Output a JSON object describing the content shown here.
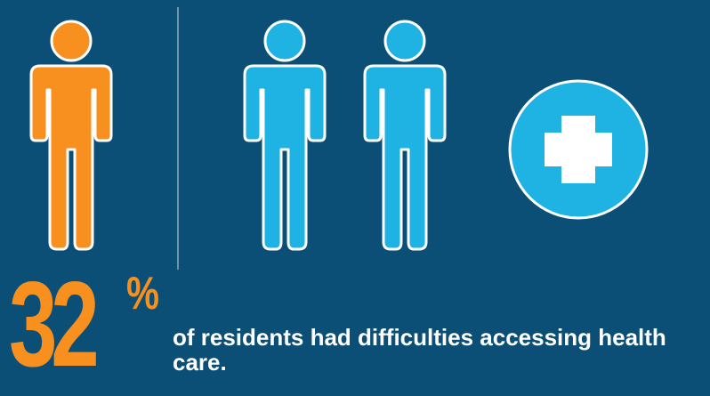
{
  "stat": {
    "value": "32",
    "unit": "%",
    "caption": "of residents had difficulties accessing health care."
  },
  "icons": [
    "person-icon",
    "person-icon",
    "person-icon",
    "medical-cross-icon"
  ],
  "colors": {
    "background": "#0b4f77",
    "highlight_person": "#f7901e",
    "other_people": "#1eb3e3",
    "outline": "#ffffff",
    "divider": "#6e93ab"
  }
}
